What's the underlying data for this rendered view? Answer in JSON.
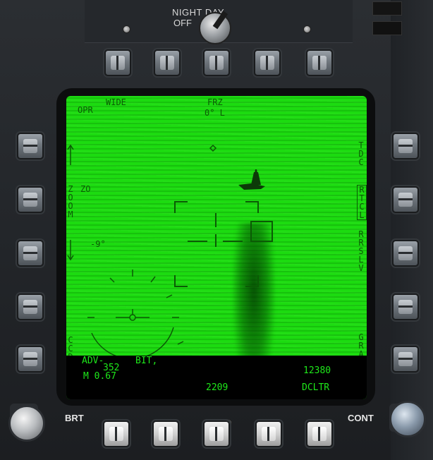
{
  "panel": {
    "night_day_line1": "NIGHT  DAY",
    "night_day_line2": "OFF",
    "brt_label": "BRT",
    "cont_label": "CONT"
  },
  "screen": {
    "top_left": [
      "OPR",
      "WIDE"
    ],
    "top_center": [
      "FRZ",
      "0° L"
    ],
    "zoom_vertical": "ZOOM",
    "zoom_value": "ZO",
    "elevation": "-9°",
    "ccd_vertical": "CCD",
    "right_labels": {
      "tdc": "TDC",
      "rtcl": "RTCL",
      "rrslv": "RRSLV",
      "gray": "GRAY"
    },
    "bottom": {
      "adv": "ADV-",
      "bit": "BIT,",
      "num_352": "352",
      "mach": "M 0.67",
      "alt": "12380",
      "range": "2209",
      "dcltr": "DCLTR"
    }
  },
  "colors": {
    "screen_green": "#1cdb10",
    "symbology_green": "#0b5a05",
    "bottom_text_green": "#1ee81a"
  }
}
